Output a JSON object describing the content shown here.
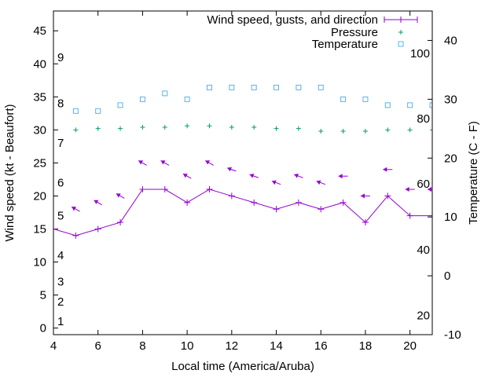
{
  "chart_data": {
    "type": "line",
    "xlabel": "Local time (America/Aruba)",
    "ylabel": "Wind speed (kt - Beaufort)",
    "y2label": "Temperature (C - F)",
    "xlim": [
      4,
      21
    ],
    "ylim": [
      -1,
      48
    ],
    "y2lim": [
      -10,
      45
    ],
    "x_ticks": [
      4,
      6,
      8,
      10,
      12,
      14,
      16,
      18,
      20
    ],
    "y_ticks": [
      0,
      5,
      10,
      15,
      20,
      25,
      30,
      35,
      40,
      45
    ],
    "y2_ticks": [
      -10,
      0,
      10,
      20,
      30,
      40
    ],
    "beaufort_labels": [
      {
        "label": "1",
        "y": 1
      },
      {
        "label": "2",
        "y": 4
      },
      {
        "label": "3",
        "y": 7
      },
      {
        "label": "4",
        "y": 11
      },
      {
        "label": "5",
        "y": 17
      },
      {
        "label": "6",
        "y": 22
      },
      {
        "label": "7",
        "y": 28
      },
      {
        "label": "8",
        "y": 34
      },
      {
        "label": "9",
        "y": 41
      }
    ],
    "fahrenheit_labels": [
      {
        "label": "20",
        "y2": -6.7
      },
      {
        "label": "40",
        "y2": 4.4
      },
      {
        "label": "60",
        "y2": 15.6
      },
      {
        "label": "80",
        "y2": 26.7
      },
      {
        "label": "100",
        "y2": 37.8
      }
    ],
    "legend": [
      "Wind speed, gusts, and direction",
      "Pressure",
      "Temperature"
    ],
    "series": [
      {
        "name": "Wind speed, gusts, and direction",
        "color": "#9400d3",
        "x": [
          4,
          5,
          6,
          7,
          8,
          9,
          10,
          11,
          12,
          13,
          14,
          15,
          16,
          17,
          18,
          19,
          20,
          21
        ],
        "y": [
          15,
          14,
          15,
          16,
          21,
          21,
          19,
          21,
          20,
          19,
          18,
          19,
          18,
          19,
          16,
          20,
          17,
          17
        ]
      },
      {
        "name": "Direction arrows",
        "color": "#9400d3",
        "x": [
          5,
          6,
          7,
          8,
          9,
          10,
          11,
          12,
          13,
          14,
          15,
          16,
          17,
          18,
          19,
          20,
          21
        ],
        "y": [
          18,
          19,
          20,
          25,
          25,
          23,
          25,
          24,
          23,
          22,
          23,
          22,
          23,
          20,
          24,
          21,
          21
        ],
        "angle_deg": [
          150,
          150,
          150,
          150,
          150,
          150,
          150,
          160,
          160,
          160,
          160,
          160,
          180,
          180,
          180,
          180,
          180
        ]
      },
      {
        "name": "Pressure",
        "color": "#009e73",
        "x": [
          5,
          6,
          7,
          8,
          9,
          10,
          11,
          12,
          13,
          14,
          15,
          16,
          17,
          18,
          19,
          20,
          21
        ],
        "y": [
          30,
          30.2,
          30.2,
          30.4,
          30.4,
          30.6,
          30.6,
          30.4,
          30.4,
          30.2,
          30.2,
          29.8,
          29.8,
          29.8,
          30,
          30,
          30
        ]
      },
      {
        "name": "Temperature",
        "color": "#56b4e9",
        "x": [
          5,
          6,
          7,
          8,
          9,
          10,
          11,
          12,
          13,
          14,
          15,
          16,
          17,
          18,
          19,
          20,
          21
        ],
        "y2": [
          28,
          28,
          29,
          30,
          31,
          30,
          32,
          32,
          32,
          32,
          32,
          32,
          30,
          30,
          29,
          29,
          29
        ]
      }
    ]
  }
}
